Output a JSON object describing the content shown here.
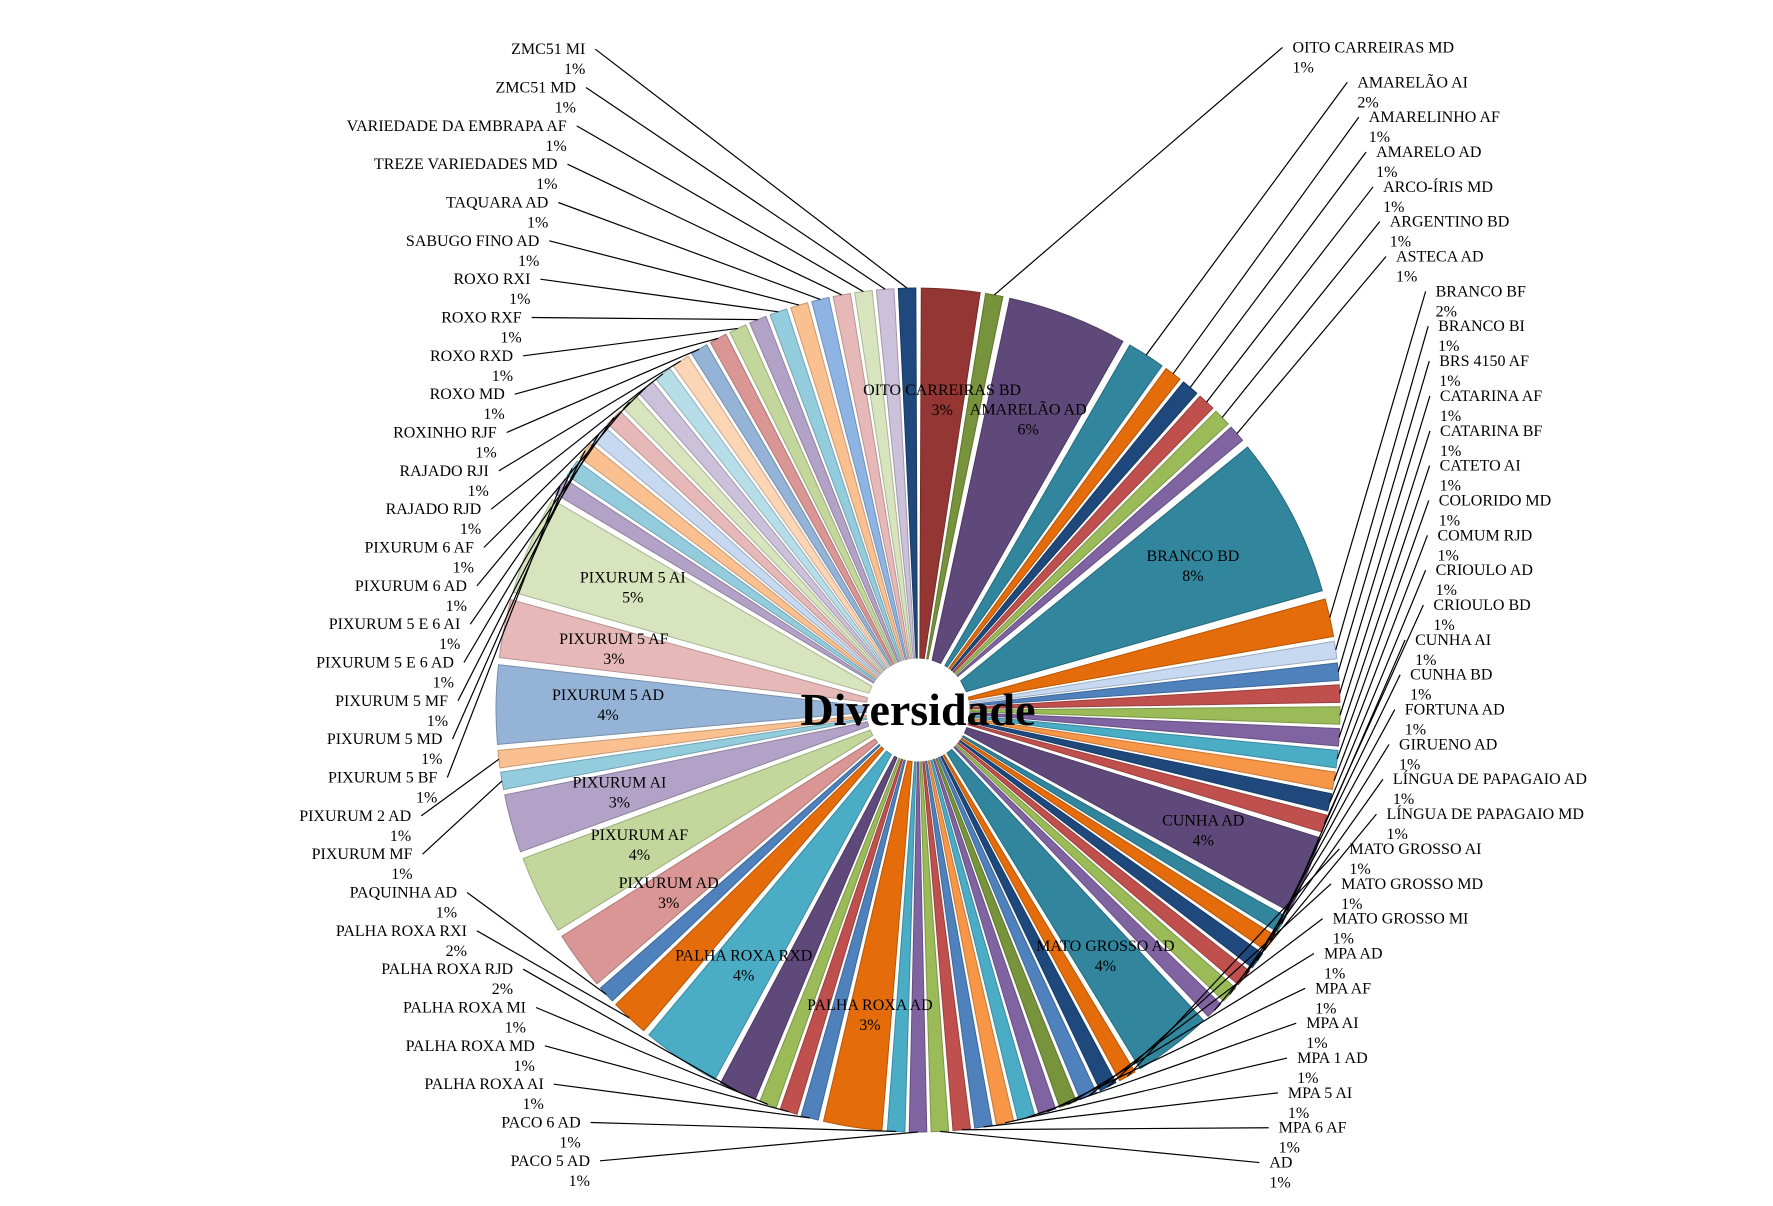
{
  "chart_data": {
    "type": "pie",
    "title": "Diversidade",
    "legend": "none",
    "slices": [
      {
        "name": "OITO CARREIRAS BD",
        "value": 3,
        "color": "#943634",
        "label": "3%"
      },
      {
        "name": "OITO CARREIRAS MD",
        "value": 1,
        "color": "#77933c",
        "label": "1%"
      },
      {
        "name": "AMARELÃO AD",
        "value": 6,
        "color": "#5f497a",
        "label": "6%"
      },
      {
        "name": "AMARELÃO AI",
        "value": 2,
        "color": "#31859c",
        "label": "2%"
      },
      {
        "name": "AMARELINHO AF",
        "value": 1,
        "color": "#e46c0a",
        "label": "1%"
      },
      {
        "name": "AMARELO AD",
        "value": 1,
        "color": "#1f497d",
        "label": "1%"
      },
      {
        "name": "ARCO-ÍRIS MD",
        "value": 1,
        "color": "#c0504d",
        "label": "1%"
      },
      {
        "name": "ARGENTINO BD",
        "value": 1,
        "color": "#9bbb59",
        "label": "1%"
      },
      {
        "name": "ASTECA AD",
        "value": 1,
        "color": "#8064a2",
        "label": "1%"
      },
      {
        "name": "BRANCO BD",
        "value": 8,
        "color": "#31859c",
        "label": "8%"
      },
      {
        "name": "BRANCO BF",
        "value": 2,
        "color": "#e46c0a",
        "label": "2%"
      },
      {
        "name": "BRANCO BI",
        "value": 1,
        "color": "#c6d9f1",
        "label": "1%"
      },
      {
        "name": "BRS 4150 AF",
        "value": 1,
        "color": "#4f81bd",
        "label": "1%"
      },
      {
        "name": "CATARINA AF",
        "value": 1,
        "color": "#c0504d",
        "label": "1%"
      },
      {
        "name": "CATARINA BF",
        "value": 1,
        "color": "#9bbb59",
        "label": "1%"
      },
      {
        "name": "CATETO AI",
        "value": 1,
        "color": "#8064a2",
        "label": "1%"
      },
      {
        "name": "COLORIDO MD",
        "value": 1,
        "color": "#4bacc6",
        "label": "1%"
      },
      {
        "name": "COMUM RJD",
        "value": 1,
        "color": "#f79646",
        "label": "1%"
      },
      {
        "name": "CRIOULO AD",
        "value": 1,
        "color": "#1f497d",
        "label": "1%"
      },
      {
        "name": "CRIOULO BD",
        "value": 1,
        "color": "#c0504d",
        "label": "1%"
      },
      {
        "name": "CUNHA AD",
        "value": 4,
        "color": "#5f497a",
        "label": "4%"
      },
      {
        "name": "CUNHA AI",
        "value": 1,
        "color": "#31859c",
        "label": "1%"
      },
      {
        "name": "CUNHA BD",
        "value": 1,
        "color": "#e46c0a",
        "label": "1%"
      },
      {
        "name": "FORTUNA AD",
        "value": 1,
        "color": "#1f497d",
        "label": "1%"
      },
      {
        "name": "GIRUENO AD",
        "value": 1,
        "color": "#c0504d",
        "label": "1%"
      },
      {
        "name": "LÍNGUA DE PAPAGAIO AD",
        "value": 1,
        "color": "#9bbb59",
        "label": "1%"
      },
      {
        "name": "LÍNGUA DE PAPAGAIO MD",
        "value": 1,
        "color": "#8064a2",
        "label": "1%"
      },
      {
        "name": "MATO GROSSO AD",
        "value": 4,
        "color": "#31859c",
        "label": "4%"
      },
      {
        "name": "MATO GROSSO AI",
        "value": 1,
        "color": "#e46c0a",
        "label": "1%"
      },
      {
        "name": "MATO GROSSO MD",
        "value": 1,
        "color": "#1f497d",
        "label": "1%"
      },
      {
        "name": "MATO GROSSO MI",
        "value": 1,
        "color": "#4f81bd",
        "label": "1%"
      },
      {
        "name": "MPA AD",
        "value": 1,
        "color": "#77933c",
        "label": "1%"
      },
      {
        "name": "MPA AF",
        "value": 1,
        "color": "#8064a2",
        "label": "1%"
      },
      {
        "name": "MPA AI",
        "value": 1,
        "color": "#4bacc6",
        "label": "1%"
      },
      {
        "name": "MPA 1 AD",
        "value": 1,
        "color": "#f79646",
        "label": "1%"
      },
      {
        "name": "MPA 5 AI",
        "value": 1,
        "color": "#4f81bd",
        "label": "1%"
      },
      {
        "name": "MPA 6 AF",
        "value": 1,
        "color": "#c0504d",
        "label": "1%"
      },
      {
        "name": "AD",
        "value": 1,
        "color": "#9bbb59",
        "label": "1%"
      },
      {
        "name": "PACO 5 AD",
        "value": 1,
        "color": "#8064a2",
        "label": "1%"
      },
      {
        "name": "PACO 6 AD",
        "value": 1,
        "color": "#4bacc6",
        "label": "1%"
      },
      {
        "name": "PALHA ROXA AD",
        "value": 3,
        "color": "#e46c0a",
        "label": "3%"
      },
      {
        "name": "PALHA ROXA AI",
        "value": 1,
        "color": "#4f81bd",
        "label": "1%"
      },
      {
        "name": "PALHA ROXA MD",
        "value": 1,
        "color": "#c0504d",
        "label": "1%"
      },
      {
        "name": "PALHA ROXA MI",
        "value": 1,
        "color": "#9bbb59",
        "label": "1%"
      },
      {
        "name": "PALHA ROXA RJD",
        "value": 2,
        "color": "#5f497a",
        "label": "2%"
      },
      {
        "name": "PALHA ROXA RXD",
        "value": 4,
        "color": "#4bacc6",
        "label": "4%"
      },
      {
        "name": "PALHA ROXA RXI",
        "value": 2,
        "color": "#e46c0a",
        "label": "2%"
      },
      {
        "name": "PAQUINHA AD",
        "value": 1,
        "color": "#4f81bd",
        "label": "1%"
      },
      {
        "name": "PIXURUM AD",
        "value": 3,
        "color": "#d99694",
        "label": "3%"
      },
      {
        "name": "PIXURUM AF",
        "value": 4,
        "color": "#c3d69b",
        "label": "4%"
      },
      {
        "name": "PIXURUM AI",
        "value": 3,
        "color": "#b3a2c7",
        "label": "3%"
      },
      {
        "name": "PIXURUM MF",
        "value": 1,
        "color": "#93cddd",
        "label": "1%"
      },
      {
        "name": "PIXURUM 2 AD",
        "value": 1,
        "color": "#fac090",
        "label": "1%"
      },
      {
        "name": "PIXURUM 5 AD",
        "value": 4,
        "color": "#95b3d7",
        "label": "4%"
      },
      {
        "name": "PIXURUM 5 AF",
        "value": 3,
        "color": "#e6b9b8",
        "label": "3%"
      },
      {
        "name": "PIXURUM 5 AI",
        "value": 5,
        "color": "#d7e4bd",
        "label": "5%"
      },
      {
        "name": "PIXURUM 5 BF",
        "value": 1,
        "color": "#b3a2c7",
        "label": "1%"
      },
      {
        "name": "PIXURUM 5 MD",
        "value": 1,
        "color": "#93cddd",
        "label": "1%"
      },
      {
        "name": "PIXURUM 5 MF",
        "value": 1,
        "color": "#fac090",
        "label": "1%"
      },
      {
        "name": "PIXURUM 5 E 6 AD",
        "value": 1,
        "color": "#c6d9f1",
        "label": "1%"
      },
      {
        "name": "PIXURUM 5 E 6 AI",
        "value": 1,
        "color": "#e6b9b8",
        "label": "1%"
      },
      {
        "name": "PIXURUM 6 AD",
        "value": 1,
        "color": "#d7e4bd",
        "label": "1%"
      },
      {
        "name": "PIXURUM 6 AF",
        "value": 1,
        "color": "#ccc1da",
        "label": "1%"
      },
      {
        "name": "RAJADO RJD",
        "value": 1,
        "color": "#b7dee8",
        "label": "1%"
      },
      {
        "name": "RAJADO RJI",
        "value": 1,
        "color": "#fcd5b5",
        "label": "1%"
      },
      {
        "name": "ROXINHO RJF",
        "value": 1,
        "color": "#95b3d7",
        "label": "1%"
      },
      {
        "name": "ROXO MD",
        "value": 1,
        "color": "#d99694",
        "label": "1%"
      },
      {
        "name": "ROXO RXD",
        "value": 1,
        "color": "#c3d69b",
        "label": "1%"
      },
      {
        "name": "ROXO RXF",
        "value": 1,
        "color": "#b3a2c7",
        "label": "1%"
      },
      {
        "name": "ROXO RXI",
        "value": 1,
        "color": "#93cddd",
        "label": "1%"
      },
      {
        "name": "SABUGO FINO AD",
        "value": 1,
        "color": "#fac090",
        "label": "1%"
      },
      {
        "name": "TAQUARA AD",
        "value": 1,
        "color": "#8eb4e3",
        "label": "1%"
      },
      {
        "name": "TREZE VARIEDADES MD",
        "value": 1,
        "color": "#e6b9b8",
        "label": "1%"
      },
      {
        "name": "VARIEDADE DA EMBRAPA AF",
        "value": 1,
        "color": "#d7e4bd",
        "label": "1%"
      },
      {
        "name": "ZMC51 MD",
        "value": 1,
        "color": "#ccc1da",
        "label": "1%"
      },
      {
        "name": "ZMC51 MI",
        "value": 1,
        "color": "#1f497d",
        "label": "1%"
      }
    ]
  }
}
